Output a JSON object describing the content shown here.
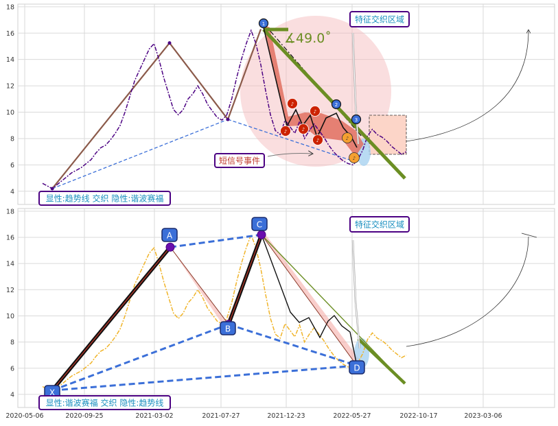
{
  "chart_data": [
    {
      "type": "line",
      "panel": "top",
      "ylim": [
        3,
        18.2
      ],
      "yticks": [
        4,
        6,
        8,
        10,
        12,
        14,
        16,
        18
      ],
      "grid": true,
      "series": [
        {
          "values": [
            4.6,
            4.4,
            4.2,
            4.5,
            4.8,
            5.1,
            5.4,
            5.6,
            5.8,
            6.1,
            6.4,
            6.9,
            7.3,
            7.5,
            7.9,
            8.4,
            9.0,
            10.0,
            11.2,
            12.4,
            13.2,
            14.0,
            14.8,
            15.2,
            14.0,
            12.6,
            11.4,
            10.2,
            9.8,
            10.2,
            11.0,
            11.4,
            12.0,
            11.4,
            10.6,
            10.1,
            9.6,
            9.4,
            9.8,
            11.0,
            12.6,
            14.0,
            15.2,
            16.2,
            15.2,
            13.6,
            11.6,
            9.8,
            8.6,
            8.3,
            9.4,
            8.9,
            8.4,
            9.3,
            8.0,
            8.6,
            9.1,
            8.6,
            8.1,
            7.5,
            7.0,
            6.6,
            6.3,
            6.1,
            6.0,
            6.4,
            7.1,
            8.2,
            8.7,
            8.3,
            8.1,
            7.8,
            7.4,
            7.1,
            6.8,
            7.0
          ]
        }
      ]
    },
    {
      "type": "line",
      "panel": "bottom",
      "ylim": [
        3,
        18.2
      ],
      "yticks": [
        4,
        6,
        8,
        10,
        12,
        14,
        16,
        18
      ],
      "xticks": [
        "2020-05-06",
        "2020-09-25",
        "2021-03-02",
        "2021-07-27",
        "2021-12-23",
        "2022-05-27",
        "2022-10-17",
        "2023-03-06"
      ],
      "grid": true,
      "series": [
        {
          "values": [
            4.6,
            4.4,
            4.2,
            4.5,
            4.8,
            5.1,
            5.4,
            5.6,
            5.8,
            6.1,
            6.4,
            6.9,
            7.3,
            7.5,
            7.9,
            8.4,
            9.0,
            10.0,
            11.2,
            12.4,
            13.2,
            14.0,
            14.8,
            15.2,
            14.0,
            12.6,
            11.4,
            10.2,
            9.8,
            10.2,
            11.0,
            11.4,
            12.0,
            11.4,
            10.6,
            10.1,
            9.6,
            9.4,
            9.8,
            11.0,
            12.6,
            14.0,
            15.2,
            16.2,
            15.2,
            13.6,
            11.6,
            9.8,
            8.6,
            8.3,
            9.4,
            8.9,
            8.4,
            9.3,
            8.0,
            8.6,
            9.1,
            8.6,
            8.1,
            7.5,
            7.0,
            6.6,
            6.3,
            6.1,
            6.0,
            6.4,
            7.1,
            8.2,
            8.7,
            8.3,
            8.1,
            7.8,
            7.4,
            7.1,
            6.8,
            7.0
          ]
        }
      ]
    }
  ],
  "annotations": {
    "top_legend": "显性:趋势线 交织 隐性:谐波赛福",
    "bottom_legend": "显性:谐波赛福 交织 隐性:趋势线",
    "feature_zone_label": "特征交织区域",
    "short_signal_label": "短信号事件",
    "angle_label": "∡49.0˚",
    "wave_markers": [
      "1",
      "2",
      "3"
    ],
    "pattern_points": [
      "X",
      "A",
      "B",
      "C",
      "D"
    ]
  },
  "colors": {
    "top_series": "#4b0082",
    "bottom_series": "#f0b429",
    "trend_green": "#6b8e23",
    "harmonic_blue": "#3b6fd8",
    "marker_red": "#cc2200",
    "marker_orange": "#f5a030",
    "legend_text": "#1a8fbf",
    "legend_border": "#4b0082"
  }
}
